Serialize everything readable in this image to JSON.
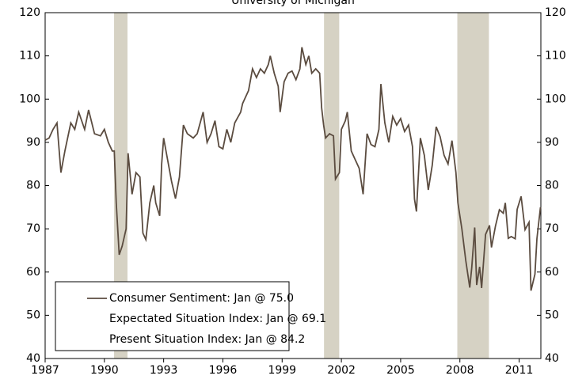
{
  "chart_data": {
    "type": "line",
    "title": "University of Michigan",
    "x": [
      1987.0,
      1987.2,
      1987.4,
      1987.6,
      1987.8,
      1988.0,
      1988.3,
      1988.5,
      1988.7,
      1989.0,
      1989.2,
      1989.5,
      1989.8,
      1990.0,
      1990.2,
      1990.4,
      1990.5,
      1990.6,
      1990.75,
      1990.9,
      1991.1,
      1991.2,
      1991.4,
      1991.6,
      1991.8,
      1991.95,
      1992.1,
      1992.3,
      1992.5,
      1992.6,
      1992.8,
      1992.9,
      1993.0,
      1993.2,
      1993.4,
      1993.6,
      1993.8,
      1994.0,
      1994.2,
      1994.5,
      1994.7,
      1995.0,
      1995.2,
      1995.4,
      1995.6,
      1995.8,
      1996.0,
      1996.2,
      1996.4,
      1996.6,
      1996.9,
      1997.0,
      1997.3,
      1997.5,
      1997.7,
      1997.9,
      1998.1,
      1998.3,
      1998.4,
      1998.6,
      1998.8,
      1998.9,
      1999.1,
      1999.3,
      1999.5,
      1999.7,
      1999.9,
      2000.0,
      2000.2,
      2000.35,
      2000.5,
      2000.7,
      2000.9,
      2001.0,
      2001.1,
      2001.2,
      2001.4,
      2001.6,
      2001.7,
      2001.9,
      2002.0,
      2002.2,
      2002.3,
      2002.5,
      2002.7,
      2002.9,
      2003.1,
      2003.3,
      2003.5,
      2003.7,
      2003.9,
      2004.0,
      2004.2,
      2004.4,
      2004.6,
      2004.8,
      2005.0,
      2005.2,
      2005.4,
      2005.6,
      2005.7,
      2005.8,
      2006.0,
      2006.2,
      2006.4,
      2006.6,
      2006.8,
      2007.0,
      2007.2,
      2007.4,
      2007.6,
      2007.8,
      2007.9,
      2008.1,
      2008.3,
      2008.5,
      2008.6,
      2008.75,
      2008.85,
      2009.0,
      2009.1,
      2009.3,
      2009.5,
      2009.6,
      2009.8,
      2009.9,
      2010.0,
      2010.2,
      2010.3,
      2010.45,
      2010.6,
      2010.8,
      2010.9,
      2011.1,
      2011.3,
      2011.5,
      2011.6,
      2011.8,
      2011.9,
      2012.08
    ],
    "series": [
      {
        "name": "Consumer Sentiment: Jan @ 75.0",
        "color": "#5b4c40",
        "values": [
          90.5,
          91,
          93,
          94.5,
          83,
          88,
          94.5,
          93,
          97,
          93,
          97.5,
          92,
          91.5,
          93,
          90,
          88,
          88,
          76,
          64,
          66,
          70,
          87.5,
          78,
          83,
          82,
          69,
          67.5,
          76,
          80,
          76,
          73,
          85,
          91,
          86,
          81,
          77,
          82,
          94,
          92,
          91,
          92,
          97,
          90,
          92,
          95,
          89,
          88.5,
          93,
          90,
          94.5,
          97,
          99,
          102,
          107,
          105,
          107,
          106,
          108,
          110,
          106,
          103,
          97,
          104,
          106,
          106.5,
          104.5,
          107,
          112,
          108,
          110,
          106,
          107,
          106,
          98,
          94,
          91,
          92,
          91.5,
          81.5,
          83,
          93,
          95,
          97,
          88,
          86,
          84,
          78,
          92,
          89.5,
          89,
          93,
          103.5,
          94.5,
          90,
          96,
          94,
          95.5,
          92.5,
          94,
          89,
          76.9,
          74,
          91,
          87,
          79,
          84.7,
          93.6,
          91.3,
          87,
          85,
          90.4,
          83,
          76,
          70,
          62.6,
          56.4,
          61,
          70.3,
          57,
          61.2,
          56.3,
          68.7,
          70.8,
          65.7,
          70.6,
          72.5,
          74.4,
          73.6,
          76,
          67.8,
          68.2,
          67.7,
          74.5,
          77.5,
          69.8,
          71.5,
          55.7,
          59.5,
          67.7,
          75
        ]
      }
    ],
    "legend_notes": [
      "Expectated Situation Index: Jan @ 69.1",
      "Present Situation Index: Jan @ 84.2"
    ],
    "recessions": [
      [
        1990.49,
        1991.17
      ],
      [
        2001.12,
        2001.89
      ],
      [
        2007.87,
        2009.47
      ]
    ],
    "recession_color": "#d6d2c4",
    "xlim": [
      1987,
      2012.1
    ],
    "xticks": [
      1987,
      1990,
      1993,
      1996,
      1999,
      2002,
      2005,
      2008,
      2011
    ],
    "ylim": [
      40,
      120
    ],
    "yticks": [
      40,
      50,
      60,
      70,
      80,
      90,
      100,
      110,
      120
    ],
    "y2lim": [
      40,
      120
    ],
    "y2ticks": [
      40,
      50,
      60,
      70,
      80,
      90,
      100,
      110,
      120
    ],
    "grid": false
  }
}
